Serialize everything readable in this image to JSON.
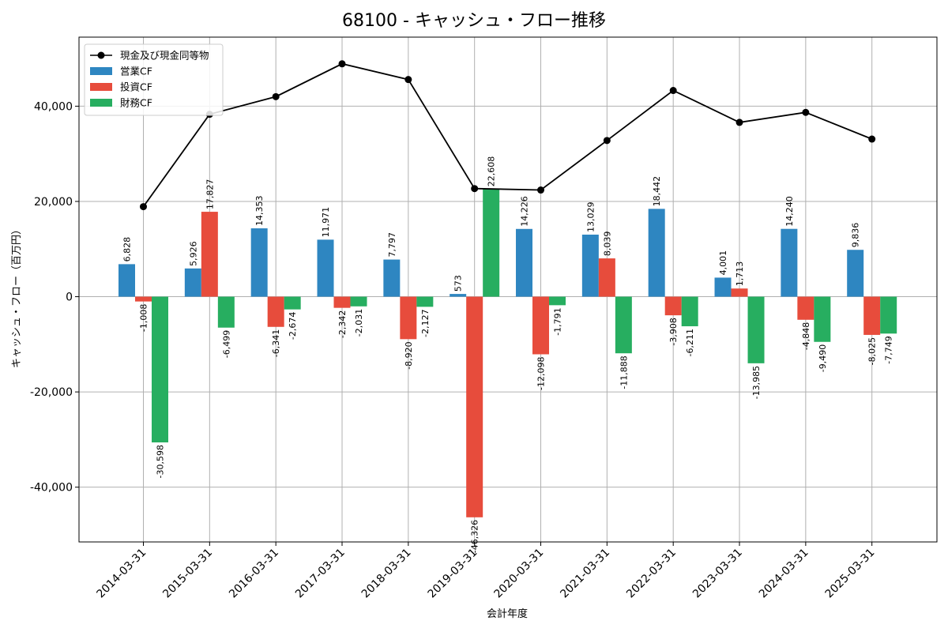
{
  "chart_data": {
    "type": "bar",
    "title": "68100 - キャッシュ・フロー推移",
    "xlabel": "会計年度",
    "ylabel": "キャッシュ・フロー（百万円）",
    "categories": [
      "2014-03-31",
      "2015-03-31",
      "2016-03-31",
      "2017-03-31",
      "2018-03-31",
      "2019-03-31",
      "2020-03-31",
      "2021-03-31",
      "2022-03-31",
      "2023-03-31",
      "2024-03-31",
      "2025-03-31"
    ],
    "ylim": [
      -51500,
      54500
    ],
    "yticks": [
      -40000,
      -20000,
      0,
      20000,
      40000
    ],
    "ytick_labels": [
      "-40,000",
      "-20,000",
      "0",
      "20,000",
      "40,000"
    ],
    "grid": true,
    "legend_position": "top-left",
    "series": [
      {
        "name": "営業CF",
        "kind": "bar",
        "color": "#2e86c1",
        "values": [
          6828,
          5926,
          14353,
          11971,
          7797,
          573,
          14226,
          13029,
          18442,
          4001,
          14240,
          9836
        ],
        "labels": [
          "6,828",
          "5,926",
          "14,353",
          "11,971",
          "7,797",
          "573",
          "14,226",
          "13,029",
          "18,442",
          "4,001",
          "14,240",
          "9,836"
        ]
      },
      {
        "name": "投資CF",
        "kind": "bar",
        "color": "#e74c3c",
        "values": [
          -1008,
          17827,
          -6341,
          -2342,
          -8920,
          -46326,
          -12098,
          8039,
          -3908,
          1713,
          -4848,
          -8025
        ],
        "labels": [
          "-1,008",
          "17,827",
          "-6,341",
          "-2,342",
          "-8,920",
          "-46,326",
          "-12,098",
          "8,039",
          "-3,908",
          "1,713",
          "-4,848",
          "-8,025"
        ]
      },
      {
        "name": "財務CF",
        "kind": "bar",
        "color": "#27ae60",
        "values": [
          -30598,
          -6499,
          -2674,
          -2031,
          -2127,
          22608,
          -1791,
          -11888,
          -6211,
          -13985,
          -9490,
          -7749
        ],
        "labels": [
          "-30,598",
          "-6,499",
          "-2,674",
          "-2,031",
          "-2,127",
          "22,608",
          "-1,791",
          "-11,888",
          "-6,211",
          "-13,985",
          "-9,490",
          "-7,749"
        ]
      },
      {
        "name": "現金及び現金同等物",
        "kind": "line",
        "color": "#000000",
        "values": [
          18900,
          38300,
          42000,
          48900,
          45600,
          22700,
          22400,
          32800,
          43300,
          36600,
          38700,
          33100
        ]
      }
    ]
  }
}
